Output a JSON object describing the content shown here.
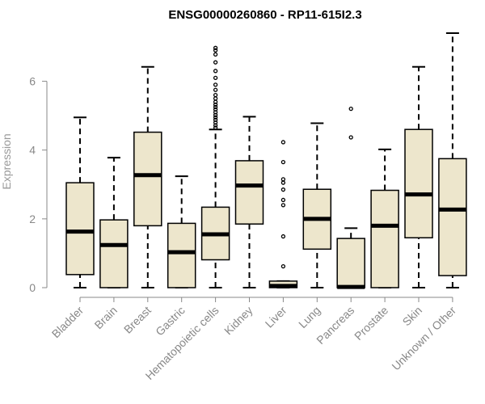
{
  "chart_data": {
    "type": "boxplot",
    "title": "ENSG00000260860 - RP11-615I2.3",
    "ylabel": "Expression",
    "xlabel": "",
    "ylim": [
      0,
      7.4
    ],
    "yticks": [
      0,
      2,
      4,
      6
    ],
    "box_fill": "#ede6cc",
    "categories": [
      "Bladder",
      "Brain",
      "Breast",
      "Gastric",
      "Hematopoietic cells",
      "Kidney",
      "Liver",
      "Lung",
      "Pancreas",
      "Prostate",
      "Skin",
      "Unknown / Other"
    ],
    "boxes": [
      {
        "min": 0.0,
        "q1": 0.38,
        "median": 1.63,
        "q3": 3.05,
        "max": 4.95,
        "outliers": []
      },
      {
        "min": 0.0,
        "q1": 0.0,
        "median": 1.24,
        "q3": 1.97,
        "max": 3.78,
        "outliers": []
      },
      {
        "min": 0.0,
        "q1": 1.8,
        "median": 3.27,
        "q3": 4.52,
        "max": 6.42,
        "outliers": []
      },
      {
        "min": 0.0,
        "q1": 0.0,
        "median": 1.03,
        "q3": 1.87,
        "max": 3.24,
        "outliers": []
      },
      {
        "min": 0.0,
        "q1": 0.81,
        "median": 1.55,
        "q3": 2.34,
        "max": 4.6,
        "outliers": [
          4.65,
          4.72,
          4.8,
          4.88,
          4.95,
          5.02,
          5.1,
          5.18,
          5.25,
          5.32,
          5.4,
          5.5,
          5.6,
          5.75,
          5.9,
          6.1,
          6.3,
          6.55,
          6.78,
          6.9,
          6.97
        ]
      },
      {
        "min": 0.0,
        "q1": 1.85,
        "median": 2.97,
        "q3": 3.69,
        "max": 4.97,
        "outliers": []
      },
      {
        "min": 0.0,
        "q1": 0.0,
        "median": 0.05,
        "q3": 0.19,
        "max": 0.19,
        "outliers": [
          0.62,
          1.49,
          2.4,
          2.55,
          2.85,
          3.05,
          3.15,
          3.65,
          4.23
        ]
      },
      {
        "min": 0.0,
        "q1": 1.12,
        "median": 2.0,
        "q3": 2.86,
        "max": 4.78,
        "outliers": []
      },
      {
        "min": 0.0,
        "q1": 0.0,
        "median": 0.02,
        "q3": 1.43,
        "max": 1.73,
        "outliers": [
          4.37,
          5.2
        ]
      },
      {
        "min": 0.0,
        "q1": 0.0,
        "median": 1.8,
        "q3": 2.83,
        "max": 4.02,
        "outliers": []
      },
      {
        "min": 0.0,
        "q1": 1.45,
        "median": 2.71,
        "q3": 4.6,
        "max": 6.42,
        "outliers": []
      },
      {
        "min": 0.0,
        "q1": 0.35,
        "median": 2.27,
        "q3": 3.75,
        "max": 7.4,
        "outliers": []
      }
    ]
  }
}
